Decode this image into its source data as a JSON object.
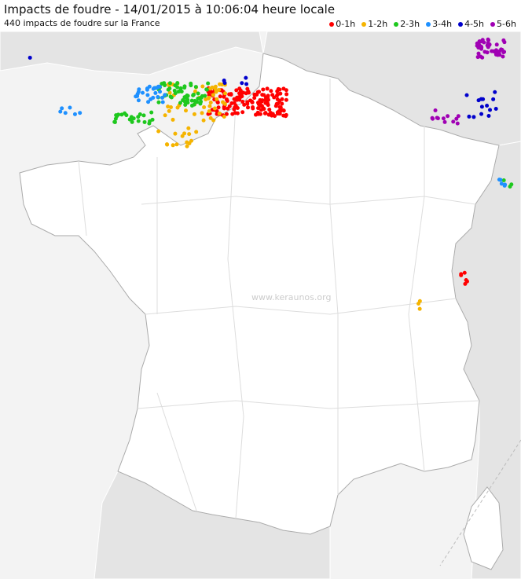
{
  "header": {
    "title": "Impacts de foudre - 14/01/2015 à 10:06:04 heure locale",
    "subtitle": "440 impacts de foudre sur la France"
  },
  "legend": [
    {
      "label": "0-1h",
      "color": "#ff0000"
    },
    {
      "label": "1-2h",
      "color": "#f5b400"
    },
    {
      "label": "2-3h",
      "color": "#1ec81e"
    },
    {
      "label": "3-4h",
      "color": "#1e90ff"
    },
    {
      "label": "4-5h",
      "color": "#0000cc"
    },
    {
      "label": "5-6h",
      "color": "#a000b4"
    }
  ],
  "watermark": "www.keraunos.org"
}
